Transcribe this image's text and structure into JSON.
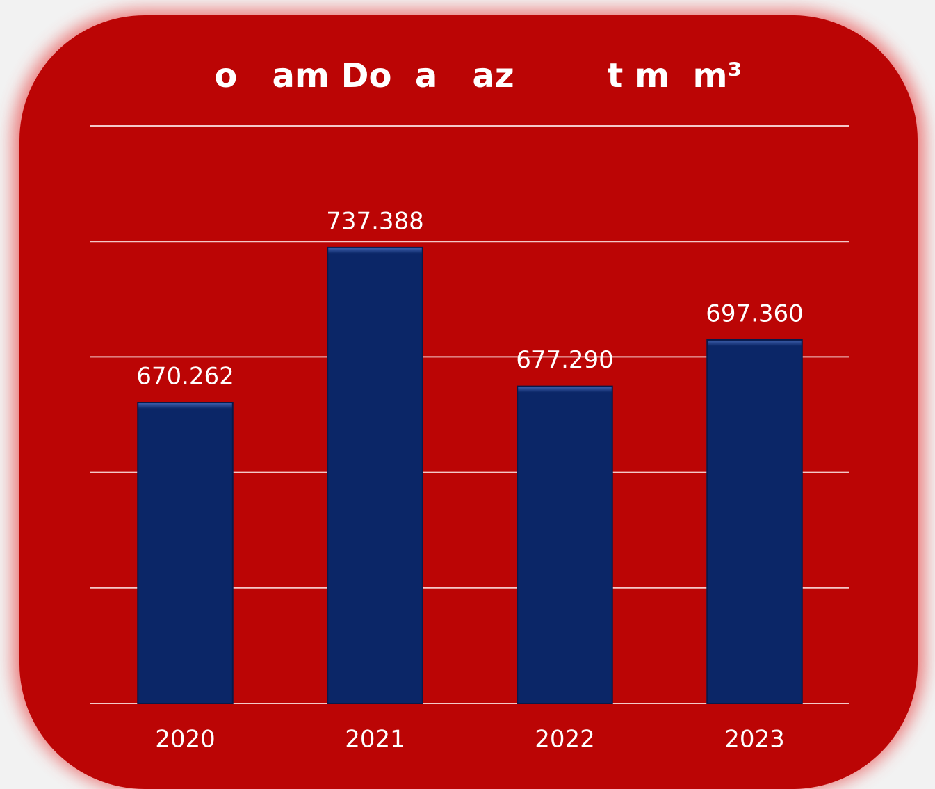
{
  "chart_data": {
    "type": "bar",
    "title": "o   am Do  a   az        t m  m³",
    "categories": [
      "2020",
      "2021",
      "2022",
      "2023"
    ],
    "values": [
      670.262,
      737.388,
      677.29,
      697.36
    ],
    "value_labels": [
      "670.262",
      "737.388",
      "677.290",
      "697.360"
    ],
    "color": "#0b2667",
    "ylim": [
      540,
      790
    ],
    "yticks": [
      540,
      590,
      640,
      690,
      740,
      790
    ],
    "grid": true
  }
}
